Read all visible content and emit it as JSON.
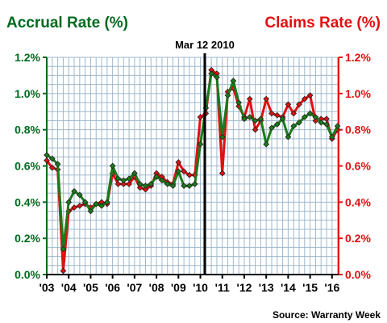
{
  "chart_data": {
    "type": "line",
    "title_left": "Accrual Rate (%)",
    "title_right": "Claims Rate (%)",
    "y_ticks": [
      "0.0%",
      "0.2%",
      "0.4%",
      "0.6%",
      "0.8%",
      "1.0%",
      "1.2%"
    ],
    "x_ticks": [
      "'03",
      "'04",
      "'05",
      "'06",
      "'07",
      "'08",
      "'09",
      "'10",
      "'11",
      "'12",
      "'13",
      "'14",
      "'15",
      "'16"
    ],
    "ylim": [
      0,
      1.2
    ],
    "grid": true,
    "annotation": {
      "label": "Mar 12 2010",
      "x": 2010.2
    },
    "source": "Source: Warranty Week",
    "colors": {
      "accrual": "#1a7a1a",
      "claims": "#e01010",
      "grid": "#9fb8cc",
      "left_axis": "#006a1e",
      "right_axis": "#e01010"
    },
    "series": [
      {
        "key": "accrual",
        "name": "Accrual Rate (%)",
        "x": [
          2003.0,
          2003.25,
          2003.5,
          2003.75,
          2004.0,
          2004.25,
          2004.5,
          2004.75,
          2005.0,
          2005.25,
          2005.5,
          2005.75,
          2006.0,
          2006.25,
          2006.5,
          2006.75,
          2007.0,
          2007.25,
          2007.5,
          2007.75,
          2008.0,
          2008.25,
          2008.5,
          2008.75,
          2009.0,
          2009.25,
          2009.5,
          2009.75,
          2010.0,
          2010.25,
          2010.5,
          2010.75,
          2011.0,
          2011.25,
          2011.5,
          2011.75,
          2012.0,
          2012.25,
          2012.5,
          2012.75,
          2013.0,
          2013.25,
          2013.5,
          2013.75,
          2014.0,
          2014.25,
          2014.5,
          2014.75,
          2015.0,
          2015.25,
          2015.5,
          2015.75,
          2016.0,
          2016.25
        ],
        "y": [
          0.66,
          0.64,
          0.61,
          0.14,
          0.4,
          0.46,
          0.44,
          0.4,
          0.35,
          0.39,
          0.38,
          0.4,
          0.6,
          0.53,
          0.52,
          0.53,
          0.56,
          0.5,
          0.49,
          0.5,
          0.54,
          0.52,
          0.5,
          0.49,
          0.57,
          0.49,
          0.49,
          0.5,
          0.72,
          0.92,
          1.11,
          1.09,
          0.76,
          0.99,
          1.07,
          0.95,
          0.86,
          0.87,
          0.85,
          0.86,
          0.72,
          0.81,
          0.83,
          0.86,
          0.76,
          0.82,
          0.84,
          0.87,
          0.89,
          0.87,
          0.84,
          0.83,
          0.76,
          0.82
        ]
      },
      {
        "key": "claims",
        "name": "Claims Rate (%)",
        "x": [
          2003.0,
          2003.25,
          2003.5,
          2003.75,
          2004.0,
          2004.25,
          2004.5,
          2004.75,
          2005.0,
          2005.25,
          2005.5,
          2005.75,
          2006.0,
          2006.25,
          2006.5,
          2006.75,
          2007.0,
          2007.25,
          2007.5,
          2007.75,
          2008.0,
          2008.25,
          2008.5,
          2008.75,
          2009.0,
          2009.25,
          2009.5,
          2009.75,
          2010.0,
          2010.25,
          2010.5,
          2010.75,
          2011.0,
          2011.25,
          2011.5,
          2011.75,
          2012.0,
          2012.25,
          2012.5,
          2012.75,
          2013.0,
          2013.25,
          2013.5,
          2013.75,
          2014.0,
          2014.25,
          2014.5,
          2014.75,
          2015.0,
          2015.25,
          2015.5,
          2015.75,
          2016.0,
          2016.25
        ],
        "y": [
          0.63,
          0.59,
          0.58,
          0.02,
          0.35,
          0.37,
          0.38,
          0.39,
          0.37,
          0.39,
          0.4,
          0.39,
          0.56,
          0.5,
          0.5,
          0.5,
          0.54,
          0.48,
          0.47,
          0.49,
          0.56,
          0.54,
          0.51,
          0.5,
          0.62,
          0.57,
          0.55,
          0.55,
          0.87,
          0.89,
          1.13,
          1.11,
          0.56,
          1.01,
          1.03,
          0.93,
          0.87,
          0.97,
          0.8,
          0.85,
          0.97,
          0.89,
          0.88,
          0.87,
          0.94,
          0.89,
          0.94,
          0.97,
          0.99,
          0.85,
          0.86,
          0.86,
          0.75,
          0.8
        ]
      }
    ]
  }
}
